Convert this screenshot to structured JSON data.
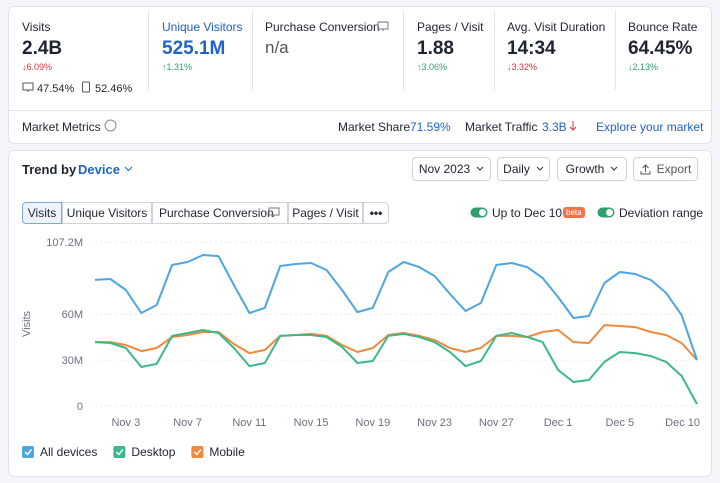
{
  "metrics": [
    {
      "label": "Visits",
      "value": "2.4B",
      "change": "↓6.09%",
      "desktop_share": "47.54%",
      "mobile_share": "52.46%"
    },
    {
      "label": "Unique Visitors",
      "value": "525.1M",
      "change": "↑1.31%"
    },
    {
      "label": "Purchase Conversion",
      "value": "n/a"
    },
    {
      "label": "Pages / Visit",
      "value": "1.88",
      "change": "↑3.06%"
    },
    {
      "label": "Avg. Visit Duration",
      "value": "14:34",
      "change": "↓3.32%"
    },
    {
      "label": "Bounce Rate",
      "value": "64.45%",
      "change": "↓2.13%"
    }
  ],
  "market": {
    "label": "Market Metrics",
    "share_label": "Market Share",
    "share": "71.59%",
    "traffic_label": "Market Traffic",
    "traffic": "3.3B",
    "link": "Explore your market"
  },
  "trend": {
    "title": "Trend by",
    "segment": "Device",
    "period": "Nov 2023",
    "interval": "Daily",
    "mode": "Growth",
    "export": "Export",
    "tabs": [
      "Visits",
      "Unique Visitors",
      "Purchase Conversion",
      "Pages / Visit"
    ],
    "toggles": [
      "Up to Dec 10",
      "Deviation range"
    ],
    "badge": "beta"
  },
  "chart_data": {
    "type": "line",
    "y_label": "Visits",
    "categories": [
      null,
      null,
      "Nov 3",
      null,
      null,
      null,
      "Nov 7",
      null,
      null,
      null,
      "Nov 11",
      null,
      null,
      null,
      "Nov 15",
      null,
      null,
      null,
      "Nov 19",
      null,
      null,
      null,
      "Nov 23",
      null,
      null,
      null,
      "Nov 27",
      null,
      null,
      null,
      "Dec 1",
      null,
      null,
      null,
      "Dec 5",
      null,
      null,
      null,
      null,
      "Dec 10"
    ],
    "ylim": [
      0,
      107200000
    ],
    "yticks": [
      0,
      {
        "value": 30000000,
        "label": "30M"
      },
      {
        "value": 60000000,
        "label": "60M"
      },
      {
        "value": 107200000,
        "label": "107.2M"
      }
    ],
    "grid": true,
    "legend": "bottom-left",
    "series": [
      {
        "name": "All devices",
        "color": "#4ea6e0",
        "values": [
          82400000,
          83000000,
          75800000,
          60800000,
          66000000,
          92200000,
          94100000,
          98700000,
          98000000,
          79100000,
          60800000,
          64100000,
          91500000,
          92800000,
          93500000,
          88900000,
          75800000,
          61400000,
          64100000,
          87600000,
          94100000,
          90800000,
          85000000,
          73200000,
          62100000,
          67300000,
          92200000,
          93500000,
          90800000,
          83700000,
          71200000,
          57500000,
          58800000,
          80400000,
          87600000,
          86300000,
          82400000,
          73900000,
          59500000,
          30100000
        ]
      },
      {
        "name": "Desktop",
        "color": "#3cb88a",
        "values": [
          41800000,
          41200000,
          37900000,
          25500000,
          27500000,
          45800000,
          47700000,
          49700000,
          47700000,
          37900000,
          26100000,
          28100000,
          45800000,
          46400000,
          46400000,
          45100000,
          38600000,
          28100000,
          29400000,
          45800000,
          47100000,
          45100000,
          41800000,
          35300000,
          26100000,
          29400000,
          45800000,
          47700000,
          45100000,
          41800000,
          23500000,
          15700000,
          17000000,
          28800000,
          35300000,
          34600000,
          32700000,
          28800000,
          19600000,
          1300000
        ]
      },
      {
        "name": "Mobile",
        "color": "#f0893c",
        "values": [
          41800000,
          41800000,
          39900000,
          35900000,
          37900000,
          45100000,
          46400000,
          48400000,
          48400000,
          40500000,
          34600000,
          36600000,
          45800000,
          46400000,
          47100000,
          45800000,
          39900000,
          35300000,
          37900000,
          46400000,
          47700000,
          45800000,
          43100000,
          37900000,
          35300000,
          37900000,
          45800000,
          45800000,
          45100000,
          48400000,
          49700000,
          41800000,
          41200000,
          52900000,
          52300000,
          51600000,
          48400000,
          46400000,
          41200000,
          30100000
        ]
      }
    ]
  }
}
